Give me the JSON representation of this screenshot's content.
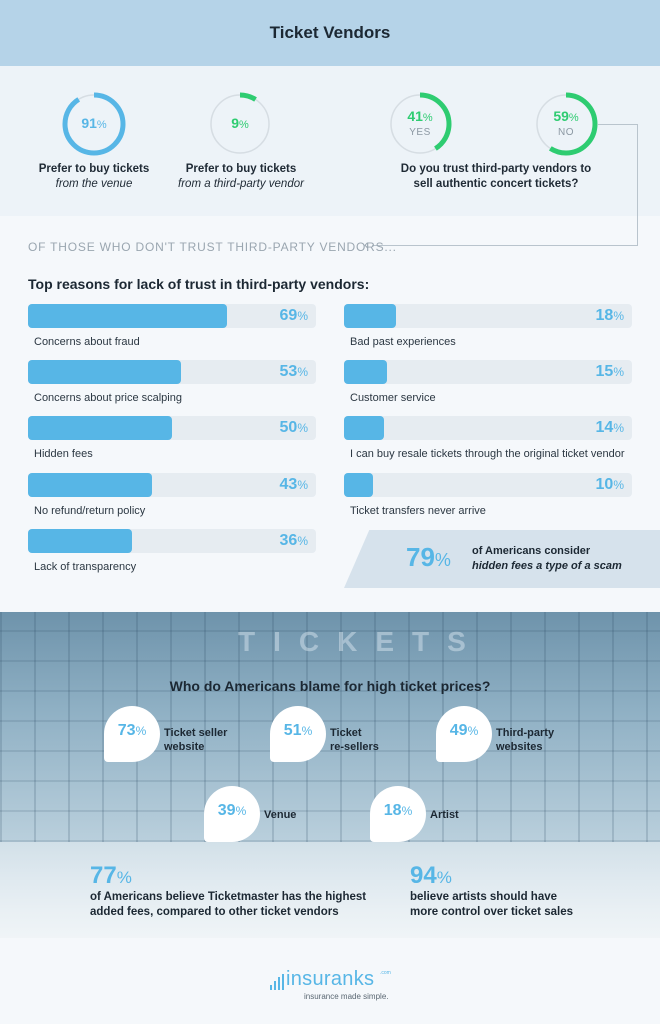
{
  "header": {
    "title": "Ticket Vendors"
  },
  "top_stats": {
    "venue": {
      "value": "91",
      "unit": "%",
      "fraction": 0.91,
      "label": "Prefer to buy tickets",
      "label_em": "from the venue",
      "color": "#57b6e6"
    },
    "third_party": {
      "value": "9",
      "unit": "%",
      "fraction": 0.09,
      "label": "Prefer to buy tickets",
      "label_em": "from a third-party vendor",
      "color": "#2ecc71"
    },
    "yes": {
      "value": "41",
      "unit": "%",
      "fraction": 0.41,
      "sub": "YES",
      "color": "#2ecc71"
    },
    "no": {
      "value": "59",
      "unit": "%",
      "fraction": 0.59,
      "sub": "NO",
      "color": "#2ecc71"
    },
    "trust_question": "Do you trust third-party vendors to sell authentic concert tickets?"
  },
  "sub_heading": "OF THOSE WHO DON'T TRUST THIRD-PARTY VENDORS...",
  "reasons": {
    "title": "Top reasons for lack of trust in third-party vendors:",
    "unit": "%",
    "items": [
      {
        "label": "Concerns about fraud",
        "value": 69
      },
      {
        "label": "Concerns about price scalping",
        "value": 53
      },
      {
        "label": "Hidden fees",
        "value": 50
      },
      {
        "label": "No refund/return policy",
        "value": 43
      },
      {
        "label": "Lack of transparency",
        "value": 36
      },
      {
        "label": "Bad past experiences",
        "value": 18
      },
      {
        "label": "Customer service",
        "value": 15
      },
      {
        "label": "I can buy resale tickets through the original ticket vendor",
        "value": 14
      },
      {
        "label": "Ticket transfers never arrive",
        "value": 10
      }
    ]
  },
  "callout": {
    "value": "79",
    "unit": "%",
    "text": "of Americans consider",
    "text_em": "hidden fees a type of a scam"
  },
  "photo": {
    "sign": "TICKETS"
  },
  "blame": {
    "title": "Who do Americans blame for high ticket prices?",
    "unit": "%",
    "items": [
      {
        "value": "73",
        "line1": "Ticket seller",
        "line2": "website"
      },
      {
        "value": "51",
        "line1": "Ticket",
        "line2": "re-sellers"
      },
      {
        "value": "49",
        "line1": "Third-party",
        "line2": "websites"
      },
      {
        "value": "39",
        "line1": "Venue",
        "line2": ""
      },
      {
        "value": "18",
        "line1": "Artist",
        "line2": ""
      }
    ]
  },
  "bottom_stats": {
    "ticketmaster": {
      "value": "77",
      "unit": "%",
      "line1": "of Americans believe Ticketmaster has the highest",
      "line2": "added fees, compared to other ticket vendors"
    },
    "artists": {
      "value": "94",
      "unit": "%",
      "line1": "believe artists should have",
      "line2": "more control over ticket sales"
    }
  },
  "footer": {
    "brand": "insuranks",
    "brand_suffix": ".com",
    "tagline": "insurance made simple."
  },
  "colors": {
    "accent_blue": "#57b6e6",
    "accent_green": "#2ecc71",
    "header_bg": "#b5d3e8"
  }
}
